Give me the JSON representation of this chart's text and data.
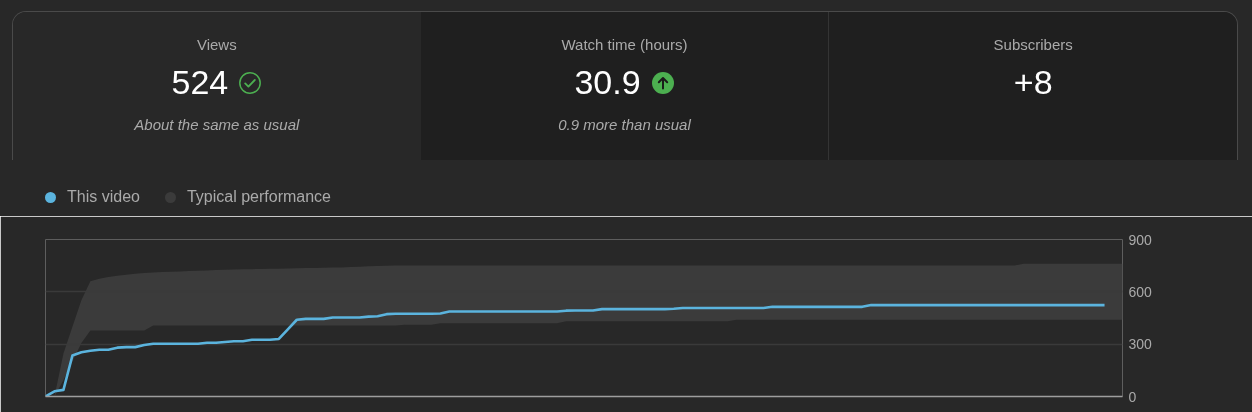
{
  "chart_data": [
    {
      "type": "other",
      "title": "Views",
      "values": [
        524
      ],
      "data_labels": true,
      "annotations": [
        "About the same as usual"
      ]
    },
    {
      "type": "other",
      "title": "Watch time (hours)",
      "values": [
        30.9
      ],
      "data_labels": true,
      "annotations": [
        "0.9 more than usual"
      ]
    },
    {
      "type": "other",
      "title": "Subscribers",
      "values": [
        8
      ],
      "value_labels": [
        "+8"
      ]
    },
    {
      "type": "line",
      "categories": [
        null,
        null,
        null,
        null,
        null,
        null,
        null,
        null,
        null,
        null,
        null,
        null,
        null,
        null,
        null,
        null,
        null,
        null,
        null,
        null,
        null,
        null,
        null,
        null,
        null,
        null,
        null,
        null,
        null,
        null,
        null,
        null,
        null,
        null,
        null,
        null,
        null,
        null,
        null,
        null,
        null,
        null,
        null,
        null,
        null,
        null,
        null,
        null,
        null,
        null,
        null,
        null,
        null,
        null,
        null,
        null,
        null,
        null,
        null,
        null,
        null,
        null,
        null,
        null,
        null,
        null,
        null,
        null,
        null,
        null,
        null,
        null,
        null,
        null,
        null,
        null,
        null,
        null,
        null,
        null,
        null,
        null,
        null,
        null,
        null,
        null,
        null,
        null,
        null,
        null,
        null,
        null,
        null,
        null,
        null,
        null,
        null,
        null,
        null,
        null,
        null,
        null,
        null,
        null,
        null,
        null,
        null,
        null,
        null,
        null,
        null,
        null,
        null,
        null,
        null,
        null,
        null,
        null,
        null,
        null,
        null
      ],
      "series": [
        {
          "name": "This video",
          "color": "#5bb4de",
          "values": [
            0,
            30,
            38,
            235,
            254,
            262,
            268,
            268,
            280,
            283,
            283,
            295,
            302,
            302,
            302,
            302,
            302,
            302,
            308,
            308,
            312,
            317,
            317,
            325,
            325,
            325,
            330,
            385,
            440,
            445,
            445,
            445,
            453,
            453,
            453,
            453,
            458,
            460,
            472,
            474,
            474,
            474,
            474,
            474,
            476,
            487,
            487,
            487,
            487,
            487,
            487,
            487,
            487,
            487,
            487,
            487,
            487,
            487,
            492,
            493,
            493,
            493,
            501,
            501,
            501,
            501,
            501,
            501,
            501,
            501,
            503,
            507,
            507,
            507,
            507,
            507,
            507,
            507,
            507,
            507,
            507,
            514,
            514,
            514,
            514,
            514,
            514,
            514,
            514,
            514,
            514,
            514,
            524,
            524,
            524,
            524,
            524,
            524,
            524,
            524,
            524,
            524,
            524,
            524,
            524,
            524,
            524,
            524,
            524,
            524,
            524,
            524,
            524,
            524,
            524,
            524,
            524,
            524,
            524,
            null,
            null
          ]
        },
        {
          "name": "Typical performance",
          "type": "area",
          "color": "#3b3b3b",
          "values": [
            null,
            null,
            null,
            null,
            null,
            null,
            null,
            null,
            null,
            null,
            null,
            null,
            null,
            null,
            null,
            null,
            null,
            null,
            null,
            null,
            null,
            null,
            null,
            null,
            null,
            null,
            null,
            null,
            null,
            null,
            null,
            null,
            null,
            null,
            null,
            null,
            null,
            null,
            null,
            null,
            null,
            null,
            null,
            null,
            null,
            null,
            null,
            null,
            null,
            null,
            null,
            null,
            null,
            null,
            null,
            null,
            null,
            null,
            null,
            null,
            null,
            null,
            null,
            null,
            null,
            null,
            null,
            null,
            null,
            null,
            null,
            null,
            null,
            null,
            null,
            null,
            null,
            null,
            null,
            null,
            null,
            null,
            null,
            null,
            null,
            null,
            null,
            null,
            null,
            null,
            null,
            null,
            null,
            null,
            null,
            null,
            null,
            null,
            null,
            null,
            null,
            null,
            null,
            null,
            null,
            null,
            null,
            null,
            null,
            null,
            null,
            null,
            null,
            null,
            null,
            null,
            null,
            null,
            null,
            null,
            null
          ],
          "lower": [
            0,
            0,
            95,
            200,
            306,
            378,
            378,
            378,
            378,
            378,
            378,
            378,
            407,
            407,
            407,
            407,
            407,
            407,
            407,
            407,
            407,
            407,
            407,
            407,
            407,
            407,
            407,
            407,
            407,
            407,
            407,
            407,
            407,
            407,
            407,
            407,
            407,
            407,
            407,
            407,
            411,
            411,
            411,
            411,
            420,
            420,
            420,
            420,
            420,
            420,
            420,
            420,
            420,
            420,
            420,
            420,
            420,
            420,
            432,
            432,
            432,
            432,
            432,
            432,
            432,
            432,
            432,
            432,
            432,
            432,
            432,
            432,
            432,
            432,
            432,
            432,
            432,
            440,
            440,
            440,
            440,
            440,
            440,
            440,
            440,
            440,
            440,
            440,
            440,
            440,
            440,
            440,
            440,
            440,
            440,
            440,
            440,
            440,
            440,
            440,
            440,
            440,
            440,
            440,
            440,
            440,
            440,
            440,
            440,
            440,
            440,
            440,
            440,
            440,
            440,
            440,
            440,
            440,
            440,
            440,
            440
          ],
          "upper": [
            0,
            0,
            247,
            400,
            552,
            660,
            675,
            685,
            692,
            698,
            704,
            708,
            711,
            713,
            715,
            717,
            719,
            721,
            723,
            725,
            727,
            728,
            729,
            730,
            731,
            732,
            733,
            734,
            735,
            736,
            737,
            738,
            739,
            740,
            742,
            744,
            746,
            748,
            750,
            751,
            751,
            751,
            751,
            751,
            751,
            751,
            751,
            751,
            751,
            751,
            751,
            751,
            751,
            751,
            751,
            751,
            751,
            751,
            751,
            751,
            751,
            751,
            751,
            751,
            751,
            751,
            751,
            751,
            751,
            751,
            751,
            751,
            751,
            751,
            751,
            751,
            751,
            751,
            751,
            751,
            751,
            751,
            751,
            751,
            751,
            751,
            751,
            751,
            751,
            751,
            751,
            751,
            751,
            751,
            751,
            751,
            751,
            751,
            751,
            751,
            751,
            751,
            751,
            751,
            751,
            751,
            751,
            751,
            751,
            761,
            761,
            761,
            761,
            761,
            761,
            761,
            761,
            761,
            761,
            761,
            761
          ]
        }
      ],
      "ylim": [
        0,
        900
      ],
      "yticks": [
        0,
        300,
        600,
        900
      ],
      "grid": "y",
      "legend": "top left",
      "tick_labels": "y"
    }
  ]
}
